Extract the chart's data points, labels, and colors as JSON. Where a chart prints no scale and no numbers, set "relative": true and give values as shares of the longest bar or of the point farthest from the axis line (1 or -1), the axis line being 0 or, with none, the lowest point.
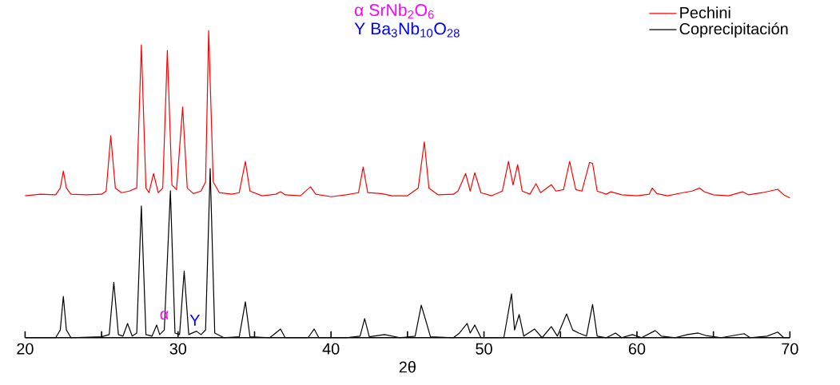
{
  "chart_data": {
    "type": "line",
    "relative": true,
    "xlabel": "2θ",
    "xlim": [
      20,
      70
    ],
    "xticks": [
      20,
      {
        "value": 25,
        "label": null
      },
      30,
      {
        "value": 35,
        "label": null
      },
      40,
      {
        "value": 45,
        "label": null
      },
      50,
      {
        "value": 55,
        "label": null
      },
      60,
      {
        "value": 65,
        "label": null
      },
      70
    ],
    "grid": false,
    "legend": "top right",
    "marker": "none",
    "line_style": "solid",
    "annotations": [
      "α SrNb$_{2}$O$_{6}$",
      "Υ Ba$_{3}$Nb$_{10}$O$_{28}$",
      {
        "text": "α",
        "x": 29.1,
        "y": 0.046
      },
      {
        "text": "Υ",
        "x": 31.1,
        "y": 0.026
      }
    ],
    "series": [
      {
        "name": "Pechini",
        "color": "#ff0000",
        "x": [
          20.0,
          21.0,
          22.0,
          22.3,
          22.5,
          22.7,
          23.0,
          24.0,
          25.0,
          25.3,
          25.6,
          25.9,
          26.3,
          26.8,
          27.3,
          27.6,
          27.9,
          28.1,
          28.4,
          28.7,
          29.0,
          29.3,
          29.6,
          29.9,
          30.3,
          30.6,
          31.0,
          31.5,
          31.8,
          32.0,
          32.3,
          32.7,
          33.5,
          34.0,
          34.4,
          34.7,
          35.5,
          36.4,
          36.7,
          37.0,
          38.0,
          38.66,
          39.0,
          40.0,
          41.0,
          41.8,
          42.1,
          42.4,
          43.3,
          44.0,
          45.0,
          45.7,
          46.1,
          46.4,
          47.0,
          48.0,
          48.3,
          48.8,
          49.1,
          49.4,
          49.8,
          50.5,
          51.2,
          51.6,
          51.9,
          52.2,
          52.5,
          53.0,
          53.4,
          53.7,
          54.4,
          54.7,
          55.2,
          55.6,
          56.0,
          56.4,
          56.9,
          57.1,
          57.4,
          58.0,
          58.3,
          59.0,
          60.0,
          60.8,
          61.0,
          61.3,
          62.0,
          63.0,
          63.6,
          64.1,
          64.4,
          65.0,
          66.0,
          66.9,
          67.3,
          68.2,
          69.2,
          69.6,
          70.0
        ],
        "values": [
          0.465,
          0.47,
          0.468,
          0.49,
          0.545,
          0.49,
          0.47,
          0.468,
          0.47,
          0.48,
          0.66,
          0.49,
          0.475,
          0.48,
          0.49,
          0.954,
          0.49,
          0.475,
          0.537,
          0.475,
          0.49,
          0.936,
          0.5,
          0.485,
          0.753,
          0.49,
          0.472,
          0.48,
          0.51,
          1.0,
          0.51,
          0.475,
          0.47,
          0.475,
          0.576,
          0.48,
          0.465,
          0.47,
          0.478,
          0.468,
          0.465,
          0.494,
          0.47,
          0.462,
          0.468,
          0.475,
          0.558,
          0.475,
          0.472,
          0.465,
          0.465,
          0.49,
          0.64,
          0.49,
          0.468,
          0.47,
          0.48,
          0.537,
          0.48,
          0.54,
          0.475,
          0.465,
          0.48,
          0.576,
          0.5,
          0.566,
          0.48,
          0.47,
          0.504,
          0.475,
          0.501,
          0.48,
          0.485,
          0.576,
          0.485,
          0.48,
          0.573,
          0.57,
          0.48,
          0.47,
          0.478,
          0.468,
          0.465,
          0.47,
          0.49,
          0.472,
          0.465,
          0.475,
          0.48,
          0.49,
          0.478,
          0.468,
          0.465,
          0.478,
          0.468,
          0.475,
          0.486,
          0.468,
          0.458
        ]
      },
      {
        "name": "Coprecipitación",
        "color": "#000000",
        "x": [
          20.0,
          22.0,
          22.3,
          22.5,
          22.7,
          23.0,
          25.0,
          25.5,
          25.8,
          26.1,
          26.4,
          26.7,
          27.0,
          27.3,
          27.6,
          27.9,
          28.3,
          28.6,
          28.8,
          29.1,
          29.5,
          29.8,
          30.1,
          30.4,
          30.7,
          31.2,
          31.5,
          31.8,
          32.1,
          32.4,
          33.0,
          34.0,
          34.4,
          34.7,
          36.0,
          36.7,
          37.0,
          38.5,
          38.9,
          39.2,
          41.0,
          41.9,
          42.2,
          42.5,
          43.5,
          44.5,
          45.5,
          45.9,
          46.2,
          46.5,
          48.0,
          48.4,
          48.9,
          49.1,
          49.4,
          49.8,
          51.3,
          51.8,
          52.0,
          52.3,
          52.6,
          53.3,
          53.8,
          54.4,
          54.8,
          55.4,
          55.8,
          56.2,
          56.7,
          57.1,
          57.4,
          58.0,
          58.6,
          59.0,
          59.7,
          60.3,
          61.2,
          61.6,
          62.5,
          63.3,
          64.0,
          64.5,
          65.5,
          67.0,
          67.4,
          68.5,
          69.2,
          69.6,
          70.0
        ],
        "values": [
          0.005,
          0.005,
          0.03,
          0.139,
          0.03,
          0.005,
          0.008,
          0.015,
          0.185,
          0.015,
          0.01,
          0.051,
          0.01,
          0.02,
          0.432,
          0.015,
          0.01,
          0.046,
          0.015,
          0.03,
          0.481,
          0.02,
          0.015,
          0.221,
          0.015,
          0.026,
          0.015,
          0.03,
          0.553,
          0.02,
          0.005,
          0.008,
          0.121,
          0.008,
          0.005,
          0.033,
          0.005,
          0.005,
          0.033,
          0.005,
          0.005,
          0.01,
          0.067,
          0.008,
          0.015,
          0.005,
          0.01,
          0.11,
          0.06,
          0.008,
          0.005,
          0.02,
          0.051,
          0.02,
          0.046,
          0.005,
          0.005,
          0.147,
          0.03,
          0.08,
          0.01,
          0.033,
          0.005,
          0.041,
          0.01,
          0.082,
          0.03,
          0.02,
          0.01,
          0.113,
          0.01,
          0.005,
          0.02,
          0.005,
          0.015,
          0.005,
          0.028,
          0.01,
          0.005,
          0.015,
          0.02,
          0.012,
          0.005,
          0.018,
          0.005,
          0.01,
          0.023,
          0.005,
          0.005
        ]
      }
    ]
  }
}
